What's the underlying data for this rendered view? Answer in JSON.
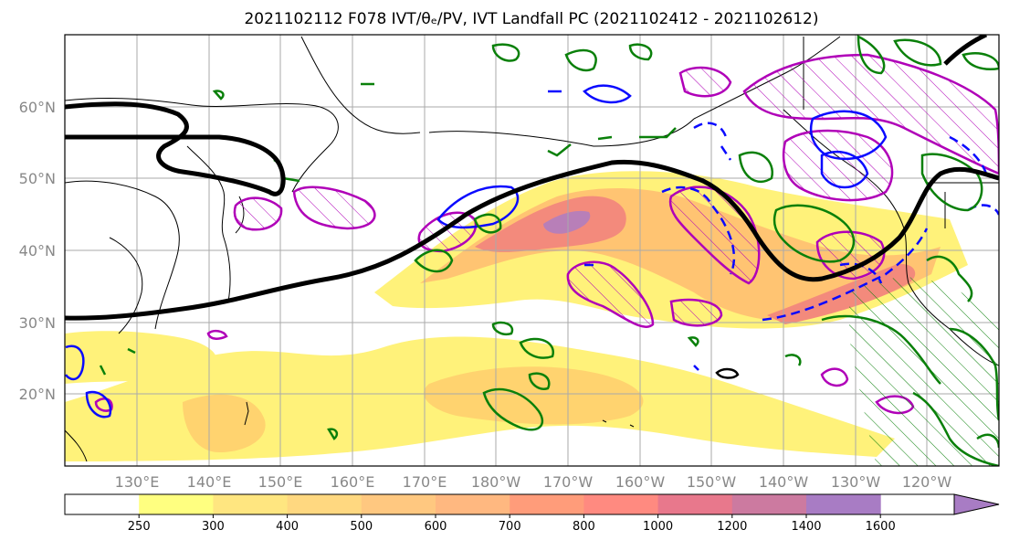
{
  "title": "2021102112 F078 IVT/θₑ/PV, IVT Landfall PC (2021102412 - 2021102612)",
  "map": {
    "lon_range": [
      120,
      250
    ],
    "lat_range": [
      10,
      70
    ],
    "lat_ticks": [
      {
        "value": 60,
        "label": "60°N"
      },
      {
        "value": 50,
        "label": "50°N"
      },
      {
        "value": 40,
        "label": "40°N"
      },
      {
        "value": 30,
        "label": "30°N"
      },
      {
        "value": 20,
        "label": "20°N"
      }
    ],
    "lon_ticks": [
      {
        "value": 130,
        "label": "130°E"
      },
      {
        "value": 140,
        "label": "140°E"
      },
      {
        "value": 150,
        "label": "150°E"
      },
      {
        "value": 160,
        "label": "160°E"
      },
      {
        "value": 170,
        "label": "170°E"
      },
      {
        "value": 180,
        "label": "180°W"
      },
      {
        "value": 190,
        "label": "170°W"
      },
      {
        "value": 200,
        "label": "160°W"
      },
      {
        "value": 210,
        "label": "150°W"
      },
      {
        "value": 220,
        "label": "140°W"
      },
      {
        "value": 230,
        "label": "130°W"
      },
      {
        "value": 240,
        "label": "120°W"
      }
    ],
    "gridlines": true
  },
  "colorbar": {
    "levels": [
      "250",
      "300",
      "400",
      "500",
      "600",
      "700",
      "800",
      "1000",
      "1200",
      "1400",
      "1600"
    ],
    "colors": [
      "#ffffff",
      "#ffff80",
      "#ffe680",
      "#ffd880",
      "#ffc880",
      "#ffb880",
      "#ff9c7a",
      "#ff8a80",
      "#e8788c",
      "#cc7aa0",
      "#a87cc4"
    ],
    "extend": "max"
  },
  "colors": {
    "ivt_low": "#fff27a",
    "ivt_mid": "#ffc472",
    "ivt_high": "#f38a7c",
    "ivt_peak": "#b87fb8",
    "pv_magenta": "#b000b8",
    "theta_blue": "#0a0aff",
    "green": "#0a800a",
    "black": "#000000"
  }
}
